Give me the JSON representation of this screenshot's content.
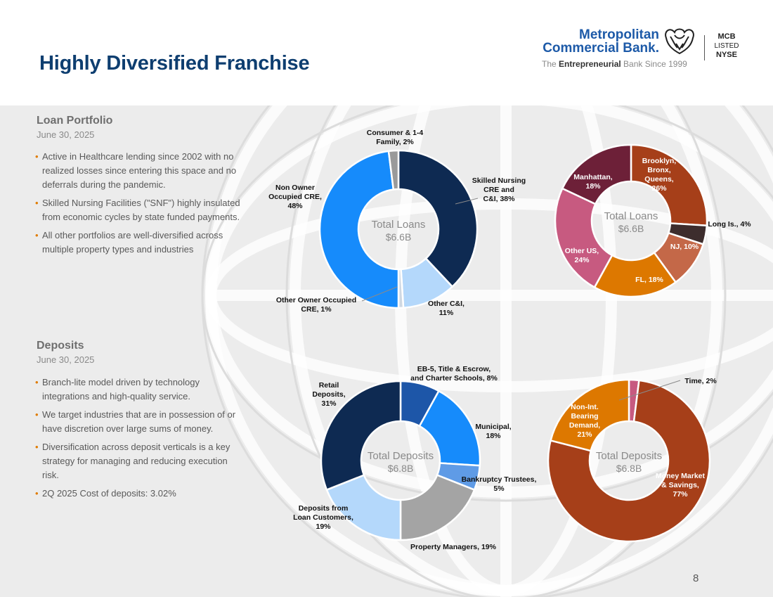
{
  "page": {
    "title": "Highly Diversified Franchise",
    "number": "8"
  },
  "logo": {
    "name_line1": "Metropolitan",
    "name_line2": "Commercial Bank.",
    "tagline_pre": "The ",
    "tagline_bold": "Entrepreneurial",
    "tagline_post": " Bank Since 1999",
    "ticker": "MCB",
    "listed": "LISTED",
    "exchange": "NYSE",
    "brand_color": "#1d5aa8"
  },
  "loan_section": {
    "title": "Loan Portfolio",
    "date": "June 30, 2025",
    "bullets": [
      "Active in Healthcare lending since 2002 with no realized losses since entering this space and no deferrals during the pandemic.",
      "Skilled Nursing Facilities (\"SNF\") highly insulated from economic cycles by state funded payments.",
      "All other portfolios are well-diversified across multiple property types and industries"
    ]
  },
  "deposit_section": {
    "title": "Deposits",
    "date": "June 30, 2025",
    "bullets": [
      "Branch-lite model driven by technology integrations and high-quality service.",
      "We target industries that are in possession of or have discretion over large sums of money.",
      "Diversification across deposit verticals is a key strategy for managing and reducing execution risk.",
      "2Q 2025 Cost of deposits: 3.02%"
    ]
  },
  "chart_data": [
    {
      "type": "pie",
      "center_label": [
        "Total Loans",
        "$6.6B"
      ],
      "slices": [
        {
          "label": "Skilled Nursing CRE and C&I, 38%",
          "value": 38,
          "color": "#0e2a52"
        },
        {
          "label": "Other C&I, 11%",
          "value": 11,
          "color": "#b4d8fb"
        },
        {
          "label": "Other Owner Occupied CRE, 1%",
          "value": 1,
          "color": "#cfd8e2"
        },
        {
          "label": "Non Owner Occupied CRE, 48%",
          "value": 48,
          "color": "#168bfb"
        },
        {
          "label": "Consumer & 1-4 Family, 2%",
          "value": 2,
          "color": "#9a9a9a"
        }
      ]
    },
    {
      "type": "pie",
      "center_label": [
        "Total Loans",
        "$6.6B"
      ],
      "slices": [
        {
          "label": "Brooklyn, Bronx, Queens, 26%",
          "value": 26,
          "color": "#a63f19"
        },
        {
          "label": "Long Is., 4%",
          "value": 4,
          "color": "#3d2d2d"
        },
        {
          "label": "NJ, 10%",
          "value": 10,
          "color": "#c46848"
        },
        {
          "label": "FL, 18%",
          "value": 18,
          "color": "#dd7800"
        },
        {
          "label": "Other US, 24%",
          "value": 24,
          "color": "#c75a80"
        },
        {
          "label": "Manhattan, 18%",
          "value": 18,
          "color": "#6d2038"
        }
      ]
    },
    {
      "type": "pie",
      "center_label": [
        "Total Deposits",
        "$6.8B"
      ],
      "slices": [
        {
          "label": "EB-5, Title & Escrow, and Charter Schools, 8%",
          "value": 8,
          "color": "#1d56a8"
        },
        {
          "label": "Municipal, 18%",
          "value": 18,
          "color": "#168bfb"
        },
        {
          "label": "Bankruptcy Trustees, 5%",
          "value": 5,
          "color": "#5f9be6"
        },
        {
          "label": "Property Managers, 19%",
          "value": 19,
          "color": "#a4a4a4"
        },
        {
          "label": "Deposits from Loan Customers, 19%",
          "value": 19,
          "color": "#b4d8fb"
        },
        {
          "label": "Retail Deposits, 31%",
          "value": 31,
          "color": "#0e2a52"
        }
      ]
    },
    {
      "type": "pie",
      "center_label": [
        "Total Deposits",
        "$6.8B"
      ],
      "slices": [
        {
          "label": "Time, 2%",
          "value": 2,
          "color": "#c75a80"
        },
        {
          "label": "Money Market & Savings, 77%",
          "value": 77,
          "color": "#a63f19"
        },
        {
          "label": "Non-Int. Bearing Demand, 21%",
          "value": 21,
          "color": "#dd7800"
        }
      ]
    }
  ]
}
